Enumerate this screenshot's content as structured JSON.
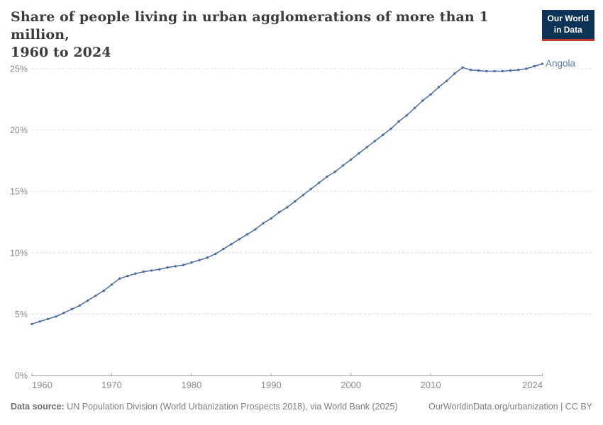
{
  "header": {
    "title_line1": "Share of people living in urban agglomerations of more than 1 million,",
    "title_line2": "1960 to 2024"
  },
  "logo": {
    "line1": "Our World",
    "line2": "in Data",
    "bg_color": "#0d3356",
    "accent_color": "#c0392b"
  },
  "chart_data": {
    "type": "line",
    "title": "Share of people living in urban agglomerations of more than 1 million, 1960 to 2024",
    "xlabel": "",
    "ylabel": "",
    "xlim": [
      1960,
      2024
    ],
    "ylim": [
      0,
      25
    ],
    "grid": "horizontal dashed",
    "legend_position": "right-of-line-end",
    "x_ticks": [
      1960,
      1970,
      1980,
      1990,
      2000,
      2010,
      2024
    ],
    "y_ticks": [
      0,
      5,
      10,
      15,
      20,
      25
    ],
    "y_tick_suffix": "%",
    "tick_label_color": "#8c8c8c",
    "gridline_color": "#dcdcdc",
    "axis_color": "#a5a5a5",
    "series": [
      {
        "name": "Angola",
        "color": "#4d6da3",
        "label_color": "#5d7cb2",
        "x": [
          1960,
          1961,
          1962,
          1963,
          1964,
          1965,
          1966,
          1967,
          1968,
          1969,
          1970,
          1971,
          1972,
          1973,
          1974,
          1975,
          1976,
          1977,
          1978,
          1979,
          1980,
          1981,
          1982,
          1983,
          1984,
          1985,
          1986,
          1987,
          1988,
          1989,
          1990,
          1991,
          1992,
          1993,
          1994,
          1995,
          1996,
          1997,
          1998,
          1999,
          2000,
          2001,
          2002,
          2003,
          2004,
          2005,
          2006,
          2007,
          2008,
          2009,
          2010,
          2011,
          2012,
          2013,
          2014,
          2015,
          2016,
          2017,
          2018,
          2019,
          2020,
          2021,
          2022,
          2023,
          2024
        ],
        "values": [
          4.2,
          4.4,
          4.6,
          4.8,
          5.1,
          5.4,
          5.7,
          6.1,
          6.5,
          6.9,
          7.4,
          7.9,
          8.1,
          8.3,
          8.45,
          8.55,
          8.65,
          8.8,
          8.9,
          9.0,
          9.2,
          9.4,
          9.6,
          9.9,
          10.3,
          10.7,
          11.1,
          11.5,
          11.9,
          12.4,
          12.8,
          13.3,
          13.7,
          14.2,
          14.7,
          15.2,
          15.7,
          16.2,
          16.6,
          17.1,
          17.6,
          18.1,
          18.6,
          19.1,
          19.6,
          20.1,
          20.7,
          21.2,
          21.8,
          22.4,
          22.9,
          23.5,
          24.0,
          24.6,
          25.1,
          24.9,
          24.85,
          24.8,
          24.8,
          24.8,
          24.85,
          24.9,
          25.0,
          25.2,
          25.4
        ]
      }
    ]
  },
  "footer": {
    "source_label": "Data source:",
    "source_text": " UN Population Division (World Urbanization Prospects 2018), via World Bank (2025)",
    "link_text": "OurWorldinData.org/urbanization | CC BY"
  }
}
